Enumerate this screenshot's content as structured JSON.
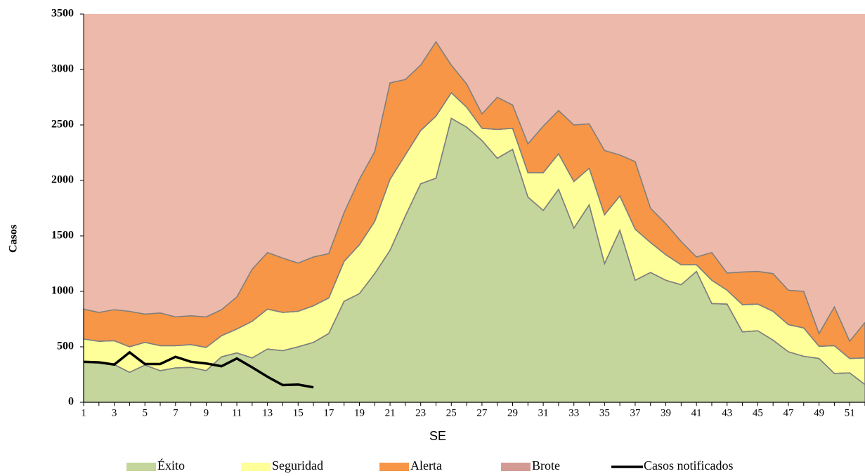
{
  "chart_data": {
    "type": "area",
    "xlabel": "SE",
    "ylabel": "Casos",
    "x": [
      1,
      2,
      3,
      4,
      5,
      6,
      7,
      8,
      9,
      10,
      11,
      12,
      13,
      14,
      15,
      16,
      17,
      18,
      19,
      20,
      21,
      22,
      23,
      24,
      25,
      26,
      27,
      28,
      29,
      30,
      31,
      32,
      33,
      34,
      35,
      36,
      37,
      38,
      39,
      40,
      41,
      42,
      43,
      44,
      45,
      46,
      47,
      48,
      49,
      50,
      51,
      52
    ],
    "xlim": [
      1,
      52
    ],
    "xticks": [
      1,
      3,
      5,
      7,
      9,
      11,
      13,
      15,
      17,
      19,
      21,
      23,
      25,
      27,
      29,
      31,
      33,
      35,
      37,
      39,
      41,
      43,
      45,
      47,
      49,
      51
    ],
    "ylim": [
      0,
      3500
    ],
    "yticks": [
      0,
      500,
      1000,
      1500,
      2000,
      2500,
      3000,
      3500
    ],
    "series": [
      {
        "name": "Éxito",
        "color": "#c4d69b",
        "values": [
          370,
          355,
          340,
          270,
          335,
          285,
          310,
          315,
          285,
          410,
          445,
          400,
          480,
          465,
          500,
          540,
          620,
          910,
          980,
          1160,
          1370,
          1680,
          1970,
          2020,
          2560,
          2480,
          2360,
          2200,
          2280,
          1850,
          1730,
          1920,
          1570,
          1780,
          1250,
          1550,
          1100,
          1170,
          1100,
          1060,
          1180,
          890,
          885,
          635,
          645,
          560,
          455,
          415,
          395,
          260,
          265,
          160
        ]
      },
      {
        "name": "Seguridad",
        "color": "#ffff99",
        "values": [
          200,
          195,
          215,
          230,
          205,
          225,
          200,
          205,
          210,
          190,
          215,
          330,
          360,
          345,
          320,
          330,
          320,
          360,
          440,
          470,
          640,
          550,
          480,
          560,
          230,
          180,
          110,
          260,
          190,
          220,
          340,
          320,
          420,
          330,
          440,
          310,
          460,
          270,
          230,
          180,
          60,
          210,
          125,
          245,
          240,
          260,
          245,
          255,
          110,
          250,
          130,
          240
        ]
      },
      {
        "name": "Alerta",
        "color": "#f79646",
        "values": [
          270,
          260,
          280,
          320,
          255,
          295,
          260,
          260,
          275,
          235,
          290,
          470,
          510,
          490,
          435,
          440,
          400,
          440,
          590,
          630,
          870,
          680,
          590,
          670,
          250,
          210,
          130,
          290,
          210,
          260,
          420,
          390,
          510,
          400,
          580,
          370,
          610,
          310,
          280,
          210,
          70,
          250,
          155,
          295,
          295,
          340,
          310,
          330,
          115,
          350,
          155,
          320
        ]
      },
      {
        "name": "Brote",
        "color": "#ecb9aa"
      },
      {
        "name": "Casos notificados",
        "type": "line",
        "color": "#000000",
        "values": [
          365,
          360,
          340,
          450,
          345,
          345,
          410,
          365,
          350,
          325,
          395,
          315,
          230,
          155,
          160,
          135,
          null,
          null,
          null,
          null,
          null,
          null,
          null,
          null,
          null,
          null,
          null,
          null,
          null,
          null,
          null,
          null,
          null,
          null,
          null,
          null,
          null,
          null,
          null,
          null,
          null,
          null,
          null,
          null,
          null,
          null,
          null,
          null,
          null,
          null,
          null,
          null
        ]
      }
    ]
  }
}
